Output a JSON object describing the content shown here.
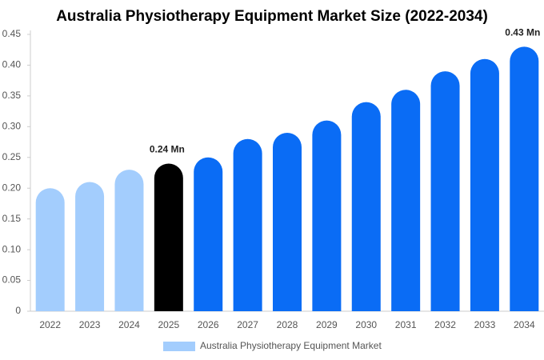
{
  "chart_data": {
    "type": "bar",
    "title": "Australia Physiotherapy Equipment Market Size (2022-2034)",
    "categories": [
      "2022",
      "2023",
      "2024",
      "2025",
      "2026",
      "2027",
      "2028",
      "2029",
      "2030",
      "2031",
      "2032",
      "2033",
      "2034"
    ],
    "series": [
      {
        "name": "Australia Physiotherapy Equipment Market",
        "color": "#a3cdfd",
        "values": [
          0.2,
          0.21,
          0.23,
          0.24,
          0.25,
          0.28,
          0.29,
          0.31,
          0.34,
          0.36,
          0.39,
          0.41,
          0.43
        ],
        "value_labels": [
          null,
          null,
          null,
          "0.24 Mn",
          null,
          null,
          null,
          null,
          null,
          null,
          null,
          null,
          "0.43 Mn"
        ],
        "colors": [
          "#a3cdfd",
          "#a3cdfd",
          "#a3cdfd",
          "#000000",
          "#0a6cf5",
          "#0a6cf5",
          "#0a6cf5",
          "#0a6cf5",
          "#0a6cf5",
          "#0a6cf5",
          "#0a6cf5",
          "#0a6cf5",
          "#0a6cf5"
        ]
      }
    ],
    "ylim": [
      0,
      0.45
    ],
    "yticks": [
      0,
      0.05,
      {
        "value": 0.1,
        "label": "0.10"
      },
      0.15,
      {
        "value": 0.2,
        "label": "0.20"
      },
      0.25,
      {
        "value": 0.3,
        "label": "0.30"
      },
      0.35,
      {
        "value": 0.4,
        "label": "0.40"
      },
      0.45
    ],
    "grid": false,
    "legend": "bottom"
  }
}
